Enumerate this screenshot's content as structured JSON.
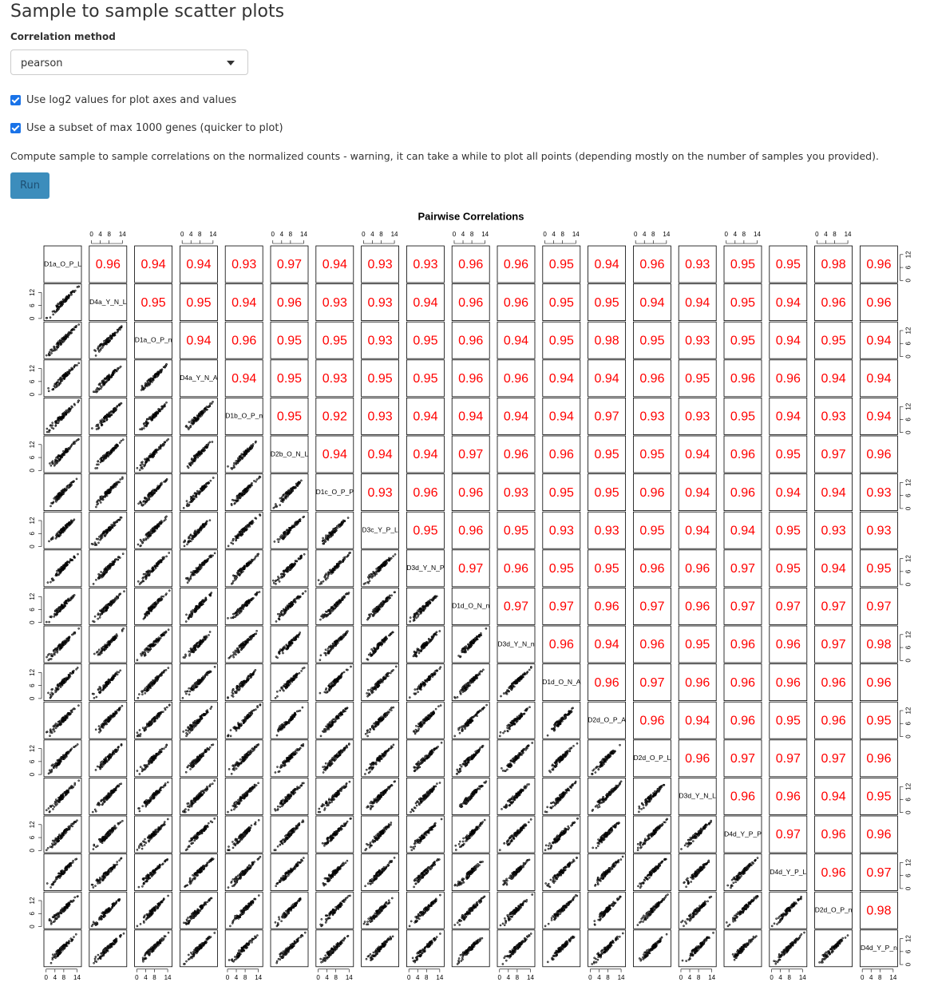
{
  "header": {
    "title": "Sample to sample scatter plots"
  },
  "form": {
    "method_label": "Correlation method",
    "method_value": "pearson",
    "checkbox_log2": "Use log2 values for plot axes and values",
    "checkbox_subset": "Use a subset of max 1000 genes (quicker to plot)",
    "description": "Compute sample to sample correlations on the normalized counts - warning, it can take a while to plot all points (depending mostly on the number of samples you provided).",
    "run_button": "Run"
  },
  "plot": {
    "title": "Pairwise Correlations",
    "samples": [
      "D1a_O_P_L",
      "D4a_Y_N_L",
      "D1a_O_P_n",
      "D4a_Y_N_A",
      "D1b_O_P_n",
      "D2b_O_N_L",
      "D1c_O_P_P",
      "D3c_Y_P_L",
      "D3d_Y_N_P",
      "D1d_O_N_n",
      "D3d_Y_N_n",
      "D1d_O_N_A",
      "D2d_O_P_A",
      "D2d_O_P_L",
      "D3d_Y_N_L",
      "D4d_Y_P_P",
      "D4d_Y_P_L",
      "D2d_O_P_n",
      "D4d_Y_P_n"
    ],
    "correlations": [
      [
        0.96,
        0.94,
        0.94,
        0.93,
        0.97,
        0.94,
        0.93,
        0.93,
        0.96,
        0.96,
        0.95,
        0.94,
        0.96,
        0.93,
        0.95,
        0.95,
        0.98,
        0.96
      ],
      [
        0.95,
        0.95,
        0.94,
        0.96,
        0.93,
        0.93,
        0.94,
        0.96,
        0.96,
        0.95,
        0.95,
        0.94,
        0.94,
        0.95,
        0.94,
        0.96,
        0.96
      ],
      [
        0.94,
        0.96,
        0.95,
        0.95,
        0.93,
        0.95,
        0.96,
        0.94,
        0.95,
        0.98,
        0.95,
        0.93,
        0.95,
        0.94,
        0.95,
        0.94
      ],
      [
        0.94,
        0.95,
        0.93,
        0.95,
        0.95,
        0.96,
        0.96,
        0.94,
        0.94,
        0.96,
        0.95,
        0.96,
        0.96,
        0.94,
        0.94
      ],
      [
        0.95,
        0.92,
        0.93,
        0.94,
        0.94,
        0.94,
        0.94,
        0.97,
        0.93,
        0.93,
        0.95,
        0.94,
        0.93,
        0.94
      ],
      [
        0.94,
        0.94,
        0.94,
        0.97,
        0.96,
        0.96,
        0.95,
        0.95,
        0.94,
        0.96,
        0.95,
        0.97,
        0.96
      ],
      [
        0.93,
        0.96,
        0.96,
        0.93,
        0.95,
        0.95,
        0.96,
        0.94,
        0.96,
        0.94,
        0.94,
        0.93
      ],
      [
        0.95,
        0.96,
        0.95,
        0.93,
        0.93,
        0.95,
        0.94,
        0.94,
        0.95,
        0.93,
        0.93
      ],
      [
        0.97,
        0.96,
        0.95,
        0.95,
        0.96,
        0.96,
        0.97,
        0.95,
        0.94,
        0.95
      ],
      [
        0.97,
        0.97,
        0.96,
        0.97,
        0.96,
        0.97,
        0.97,
        0.97,
        0.97
      ],
      [
        0.96,
        0.94,
        0.96,
        0.95,
        0.96,
        0.96,
        0.97,
        0.98
      ],
      [
        0.96,
        0.97,
        0.96,
        0.96,
        0.96,
        0.96,
        0.96
      ],
      [
        0.96,
        0.94,
        0.96,
        0.95,
        0.96,
        0.95
      ],
      [
        0.96,
        0.97,
        0.97,
        0.97,
        0.96
      ],
      [
        0.96,
        0.96,
        0.94,
        0.95
      ],
      [
        0.97,
        0.96,
        0.96
      ],
      [
        0.96,
        0.97
      ],
      [
        0.98
      ]
    ],
    "x_ticks": [
      0,
      4,
      8,
      14
    ],
    "y_ticks": [
      0,
      6,
      12
    ]
  }
}
